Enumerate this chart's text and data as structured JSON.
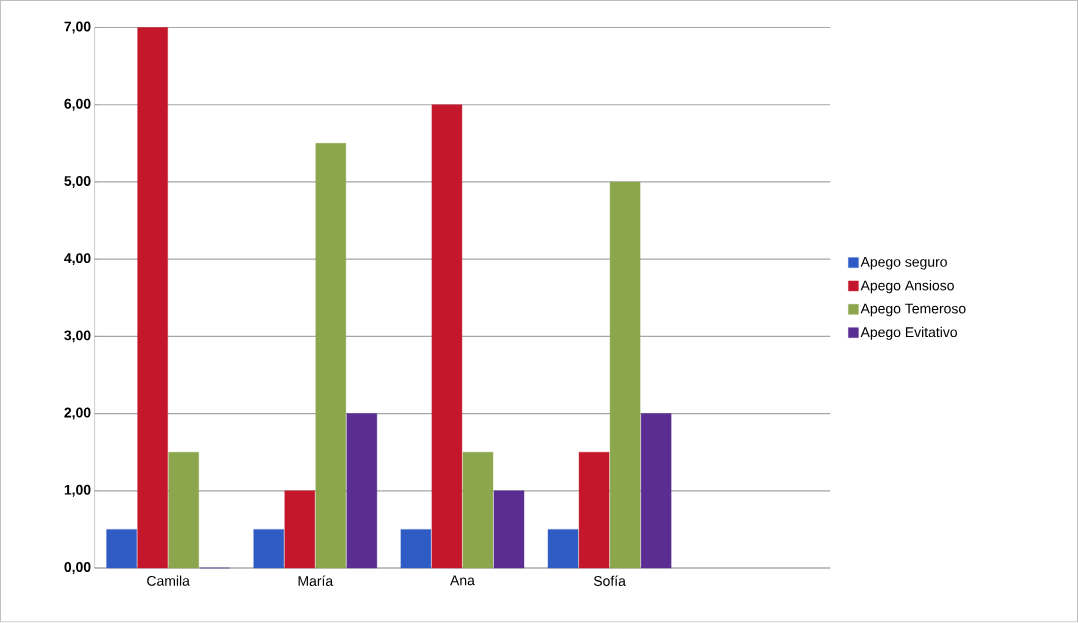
{
  "chart_data": {
    "type": "bar",
    "categories": [
      "Camila",
      "María",
      "Ana",
      "Sofía",
      null
    ],
    "series": [
      {
        "name": "Apego seguro",
        "color": "#2e5cc4",
        "values": [
          0.5,
          0.5,
          0.5,
          0.5,
          null
        ]
      },
      {
        "name": "Apego Ansioso",
        "color": "#c4172c",
        "values": [
          7,
          1,
          6,
          1.5,
          null
        ]
      },
      {
        "name": "Apego Temeroso",
        "color": "#8ba64c",
        "values": [
          1.5,
          5.5,
          1.5,
          5,
          null
        ]
      },
      {
        "name": "Apego Evitativo",
        "color": "#5a2d92",
        "values": [
          0,
          2,
          1,
          2,
          null
        ]
      }
    ],
    "ylim": [
      0,
      7
    ],
    "yticks": [
      {
        "value": 0,
        "label": "0,00"
      },
      {
        "value": 1,
        "label": "1,00"
      },
      {
        "value": 2,
        "label": "2,00"
      },
      {
        "value": 3,
        "label": "3,00"
      },
      {
        "value": 4,
        "label": "4,00"
      },
      {
        "value": 5,
        "label": "5,00"
      },
      {
        "value": 6,
        "label": "6,00"
      },
      {
        "value": 7,
        "label": "7,00"
      }
    ],
    "grid": "y",
    "legend": "right"
  }
}
